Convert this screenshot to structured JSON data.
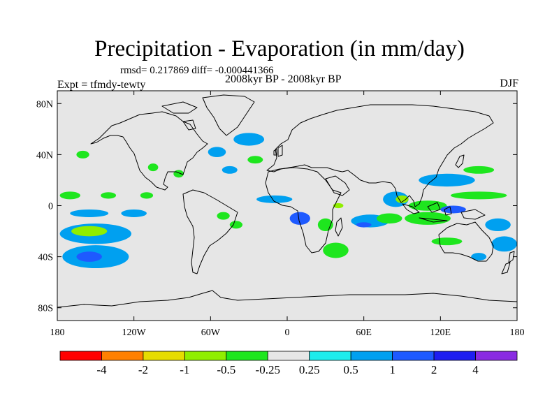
{
  "chart_data": {
    "type": "heatmap",
    "title": "Precipitation - Evaporation (in mm/day)",
    "stats_text": "rmsd= 0.217869 diff= -0.000441366",
    "subtitle": "2008kyr BP - 2008kyr BP",
    "experiment_label": "Expt = tfmdy-tewty",
    "season": "DJF",
    "x_range": [
      -180,
      180
    ],
    "y_range": [
      -90,
      90
    ],
    "x_ticks": [
      {
        "value": -180,
        "label": "180"
      },
      {
        "value": -120,
        "label": "120W"
      },
      {
        "value": -60,
        "label": "60W"
      },
      {
        "value": 0,
        "label": "0"
      },
      {
        "value": 60,
        "label": "60E"
      },
      {
        "value": 120,
        "label": "120E"
      },
      {
        "value": 180,
        "label": "180"
      }
    ],
    "y_ticks": [
      {
        "value": 80,
        "label": "80N"
      },
      {
        "value": 40,
        "label": "40N"
      },
      {
        "value": 0,
        "label": "0"
      },
      {
        "value": -40,
        "label": "40S"
      },
      {
        "value": -80,
        "label": "80S"
      }
    ],
    "colorbar": {
      "colors": [
        "#ff0000",
        "#ff8000",
        "#e6dc00",
        "#90ee00",
        "#1ee61e",
        "#e6e6e6",
        "#1eecec",
        "#00a0f0",
        "#1e5aff",
        "#1e1ef0",
        "#8a2be2"
      ],
      "labels": [
        "-4",
        "-2",
        "-1",
        "-0.5",
        "-0.25",
        "0.25",
        "0.5",
        "1",
        "2",
        "4"
      ]
    },
    "background_color": "#e6e6e6",
    "anomaly_patches": [
      {
        "lon": -150,
        "lat": -22,
        "rlon": 28,
        "rlat": 8,
        "level": "0.5"
      },
      {
        "lon": -155,
        "lat": -20,
        "rlon": 14,
        "rlat": 4,
        "level": "-0.5"
      },
      {
        "lon": -150,
        "lat": -40,
        "rlon": 26,
        "rlat": 9,
        "level": "0.5"
      },
      {
        "lon": -155,
        "lat": -40,
        "rlon": 10,
        "rlat": 4,
        "level": "1"
      },
      {
        "lon": -170,
        "lat": 8,
        "rlon": 8,
        "rlat": 3,
        "level": "-0.25"
      },
      {
        "lon": -140,
        "lat": 8,
        "rlon": 6,
        "rlat": 2.5,
        "level": "-0.25"
      },
      {
        "lon": -110,
        "lat": 8,
        "rlon": 5,
        "rlat": 2.5,
        "level": "-0.25"
      },
      {
        "lon": -155,
        "lat": -6,
        "rlon": 15,
        "rlat": 3,
        "level": "0.5"
      },
      {
        "lon": -120,
        "lat": -6,
        "rlon": 10,
        "rlat": 3,
        "level": "0.5"
      },
      {
        "lon": -30,
        "lat": 52,
        "rlon": 12,
        "rlat": 5,
        "level": "0.5"
      },
      {
        "lon": -55,
        "lat": 42,
        "rlon": 7,
        "rlat": 4,
        "level": "0.5"
      },
      {
        "lon": -45,
        "lat": 28,
        "rlon": 6,
        "rlat": 3,
        "level": "0.5"
      },
      {
        "lon": -160,
        "lat": 40,
        "rlon": 5,
        "rlat": 3,
        "level": "-0.25"
      },
      {
        "lon": -105,
        "lat": 30,
        "rlon": 4,
        "rlat": 3,
        "level": "-0.25"
      },
      {
        "lon": -85,
        "lat": 25,
        "rlon": 4,
        "rlat": 3,
        "level": "-0.25"
      },
      {
        "lon": -25,
        "lat": 36,
        "rlon": 6,
        "rlat": 3,
        "level": "-0.25"
      },
      {
        "lon": -10,
        "lat": 5,
        "rlon": 14,
        "rlat": 3,
        "level": "0.5"
      },
      {
        "lon": -40,
        "lat": -15,
        "rlon": 5,
        "rlat": 3,
        "level": "-0.25"
      },
      {
        "lon": -50,
        "lat": -8,
        "rlon": 5,
        "rlat": 3,
        "level": "-0.25"
      },
      {
        "lon": 10,
        "lat": -10,
        "rlon": 8,
        "rlat": 5,
        "level": "1"
      },
      {
        "lon": 30,
        "lat": -15,
        "rlon": 6,
        "rlat": 5,
        "level": "-0.25"
      },
      {
        "lon": 38,
        "lat": -35,
        "rlon": 10,
        "rlat": 6,
        "level": "-0.25"
      },
      {
        "lon": 65,
        "lat": -12,
        "rlon": 15,
        "rlat": 5,
        "level": "0.5"
      },
      {
        "lon": 60,
        "lat": -15,
        "rlon": 6,
        "rlat": 2,
        "level": "1"
      },
      {
        "lon": 80,
        "lat": -10,
        "rlon": 10,
        "rlat": 4,
        "level": "-0.25"
      },
      {
        "lon": 110,
        "lat": -10,
        "rlon": 18,
        "rlat": 5,
        "level": "-0.25"
      },
      {
        "lon": 110,
        "lat": 0,
        "rlon": 15,
        "rlat": 4,
        "level": "-0.25"
      },
      {
        "lon": 85,
        "lat": 5,
        "rlon": 10,
        "rlat": 6,
        "level": "0.5"
      },
      {
        "lon": 90,
        "lat": 5,
        "rlon": 5,
        "rlat": 3,
        "level": "-0.5"
      },
      {
        "lon": 125,
        "lat": 20,
        "rlon": 22,
        "rlat": 5,
        "level": "0.5"
      },
      {
        "lon": 150,
        "lat": 8,
        "rlon": 22,
        "rlat": 3,
        "level": "-0.25"
      },
      {
        "lon": 150,
        "lat": 28,
        "rlon": 12,
        "rlat": 3,
        "level": "-0.25"
      },
      {
        "lon": 130,
        "lat": -3,
        "rlon": 10,
        "rlat": 3,
        "level": "1"
      },
      {
        "lon": 125,
        "lat": -28,
        "rlon": 12,
        "rlat": 3,
        "level": "-0.25"
      },
      {
        "lon": 165,
        "lat": -15,
        "rlon": 10,
        "rlat": 5,
        "level": "0.5"
      },
      {
        "lon": 170,
        "lat": -30,
        "rlon": 10,
        "rlat": 6,
        "level": "0.5"
      },
      {
        "lon": 40,
        "lat": 0,
        "rlon": 4,
        "rlat": 2,
        "level": "-0.5"
      },
      {
        "lon": 150,
        "lat": -40,
        "rlon": 6,
        "rlat": 3,
        "level": "0.5"
      }
    ]
  }
}
